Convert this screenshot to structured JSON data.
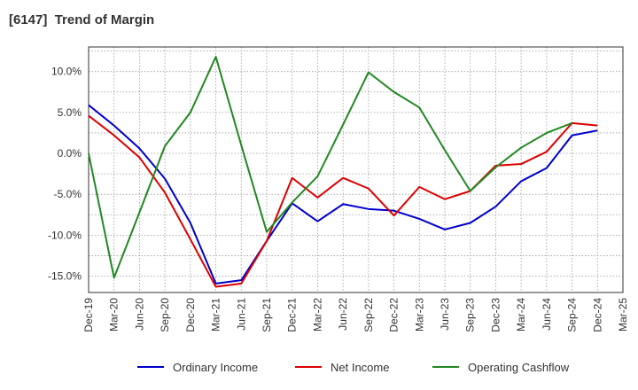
{
  "chart_data": {
    "type": "line",
    "title": "[6147]  Trend of Margin",
    "xlabel": "",
    "ylabel": "",
    "categories": [
      "Dec-19",
      "Mar-20",
      "Jun-20",
      "Sep-20",
      "Dec-20",
      "Mar-21",
      "Jun-21",
      "Sep-21",
      "Dec-21",
      "Mar-22",
      "Jun-22",
      "Sep-22",
      "Dec-22",
      "Mar-23",
      "Jun-23",
      "Sep-23",
      "Dec-23",
      "Mar-24",
      "Jun-24",
      "Sep-24",
      "Dec-24",
      "Mar-25"
    ],
    "ylim": [
      -17,
      13
    ],
    "yticks": [
      10.0,
      5.0,
      0.0,
      -5.0,
      -10.0,
      -15.0
    ],
    "ytick_labels": [
      "10.0%",
      "5.0%",
      "0.0%",
      "-5.0%",
      "-10.0%",
      "-15.0%"
    ],
    "grid": true,
    "legend_position": "bottom",
    "series": [
      {
        "name": "Ordinary Income",
        "color": "#0000cc",
        "values": [
          5.9,
          3.4,
          0.6,
          -3.1,
          -8.5,
          -15.9,
          -15.5,
          -10.7,
          -6.1,
          -8.3,
          -6.2,
          -6.8,
          -7.0,
          -8.0,
          -9.3,
          -8.5,
          -6.5,
          -3.4,
          -1.8,
          2.2,
          2.8,
          null
        ]
      },
      {
        "name": "Net Income",
        "color": "#dd0000",
        "values": [
          4.6,
          2.2,
          -0.5,
          -4.8,
          -10.5,
          -16.3,
          -15.9,
          -10.7,
          -3.0,
          -5.4,
          -3.0,
          -4.3,
          -7.6,
          -4.1,
          -5.6,
          -4.6,
          -1.5,
          -1.3,
          0.2,
          3.7,
          3.4,
          null
        ]
      },
      {
        "name": "Operating Cashflow",
        "color": "#228822",
        "values": [
          0.0,
          -15.2,
          -7.2,
          0.9,
          5.0,
          11.8,
          1.0,
          -9.6,
          -6.0,
          -2.8,
          3.5,
          9.9,
          7.5,
          5.6,
          0.4,
          -4.6,
          -1.7,
          0.7,
          2.5,
          3.7,
          null,
          null
        ]
      }
    ]
  }
}
